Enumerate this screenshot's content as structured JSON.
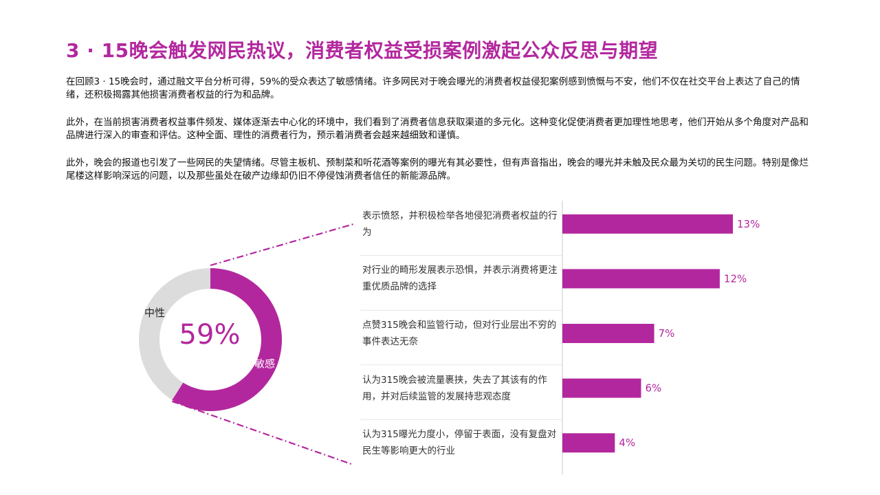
{
  "title": "3 · 15晚会触发网民热议，消费者权益受损案例激起公众反思与期望",
  "paragraphs": [
    "在回顾3 · 15晚会时，通过融文平台分析可得，59%的受众表达了敏感情绪。许多网民对于晚会曝光的消费者权益侵犯案例感到愤慨与不安，他们不仅在社交平台上表达了自己的情绪，还积极揭露其他损害消费者权益的行为和品牌。",
    "此外，在当前损害消费者权益事件频发、媒体逐渐去中心化的环境中，我们看到了消费者信息获取渠道的多元化。这种变化促使消费者更加理性地思考，他们开始从多个角度对产品和品牌进行深入的审查和评估。这种全面、理性的消费者行为，预示着消费者会越来越细致和谨慎。",
    "此外，晚会的报道也引发了一些网民的失望情绪。尽管主板机、预制菜和听花酒等案例的曝光有其必要性，但有声音指出，晚会的曝光并未触及民众最为关切的民生问题。特别是像烂尾楼这样影响深远的问题，以及那些虽处在破产边缘却仍旧不停侵蚀消费者信任的新能源品牌。"
  ],
  "colors": {
    "accent": "#b3279e",
    "neutral": "#dcdcdc"
  },
  "chart_data": [
    {
      "type": "pie",
      "variant": "donut",
      "center_label": "59%",
      "categories": [
        "敏感",
        "中性"
      ],
      "values": [
        59,
        41
      ]
    },
    {
      "type": "bar",
      "orientation": "horizontal",
      "categories": [
        "表示愤怒，并积极检举各地侵犯消费者权益的行为",
        "对行业的畸形发展表示恐惧，并表示消费将更注重优质品牌的选择",
        "点赞315晚会和监管行动，但对行业层出不穷的事件表达无奈",
        "认为315晚会被流量裹挟，失去了其该有的作用，并对后续监管的发展持悲观态度",
        "认为315曝光力度小，停留于表面，没有复盘对民生等影响更大的行业"
      ],
      "values": [
        13,
        12,
        7,
        6,
        4
      ],
      "value_labels": [
        "13%",
        "12%",
        "7%",
        "6%",
        "4%"
      ],
      "xlim": [
        0,
        13
      ]
    }
  ]
}
